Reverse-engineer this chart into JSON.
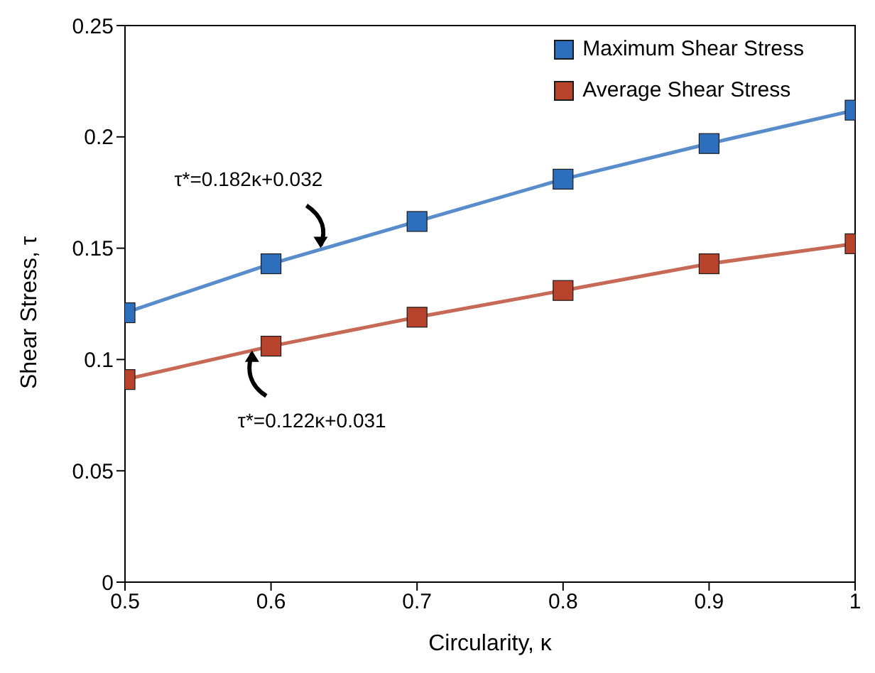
{
  "chart_data": {
    "type": "line",
    "xlabel": "Circularity, κ",
    "ylabel": "Shear Stress, τ",
    "x": [
      0.5,
      0.6,
      0.7,
      0.8,
      0.9,
      1
    ],
    "series": [
      {
        "name": "Maximum Shear Stress",
        "color": "#2e6fbd",
        "values": [
          0.121,
          0.143,
          0.162,
          0.181,
          0.197,
          0.212
        ]
      },
      {
        "name": "Average Shear Stress",
        "color": "#b8432c",
        "values": [
          0.091,
          0.106,
          0.119,
          0.131,
          0.143,
          0.152
        ]
      }
    ],
    "xlim": [
      0.5,
      1
    ],
    "xticks": [
      0.5,
      0.6,
      0.7,
      0.8,
      0.9,
      1
    ],
    "ylim": [
      0,
      0.25
    ],
    "yticks": [
      0,
      0.05,
      0.1,
      0.15,
      0.2,
      0.25
    ],
    "annotations": [
      {
        "text": "τ*=0.182κ+0.032",
        "x": 0.634,
        "y": 0.15
      },
      {
        "text": "τ*=0.122κ+0.031",
        "x": 0.587,
        "y": 0.104
      }
    ],
    "grid": false,
    "legend": "top right",
    "marker": "square",
    "line_style": "solid"
  }
}
